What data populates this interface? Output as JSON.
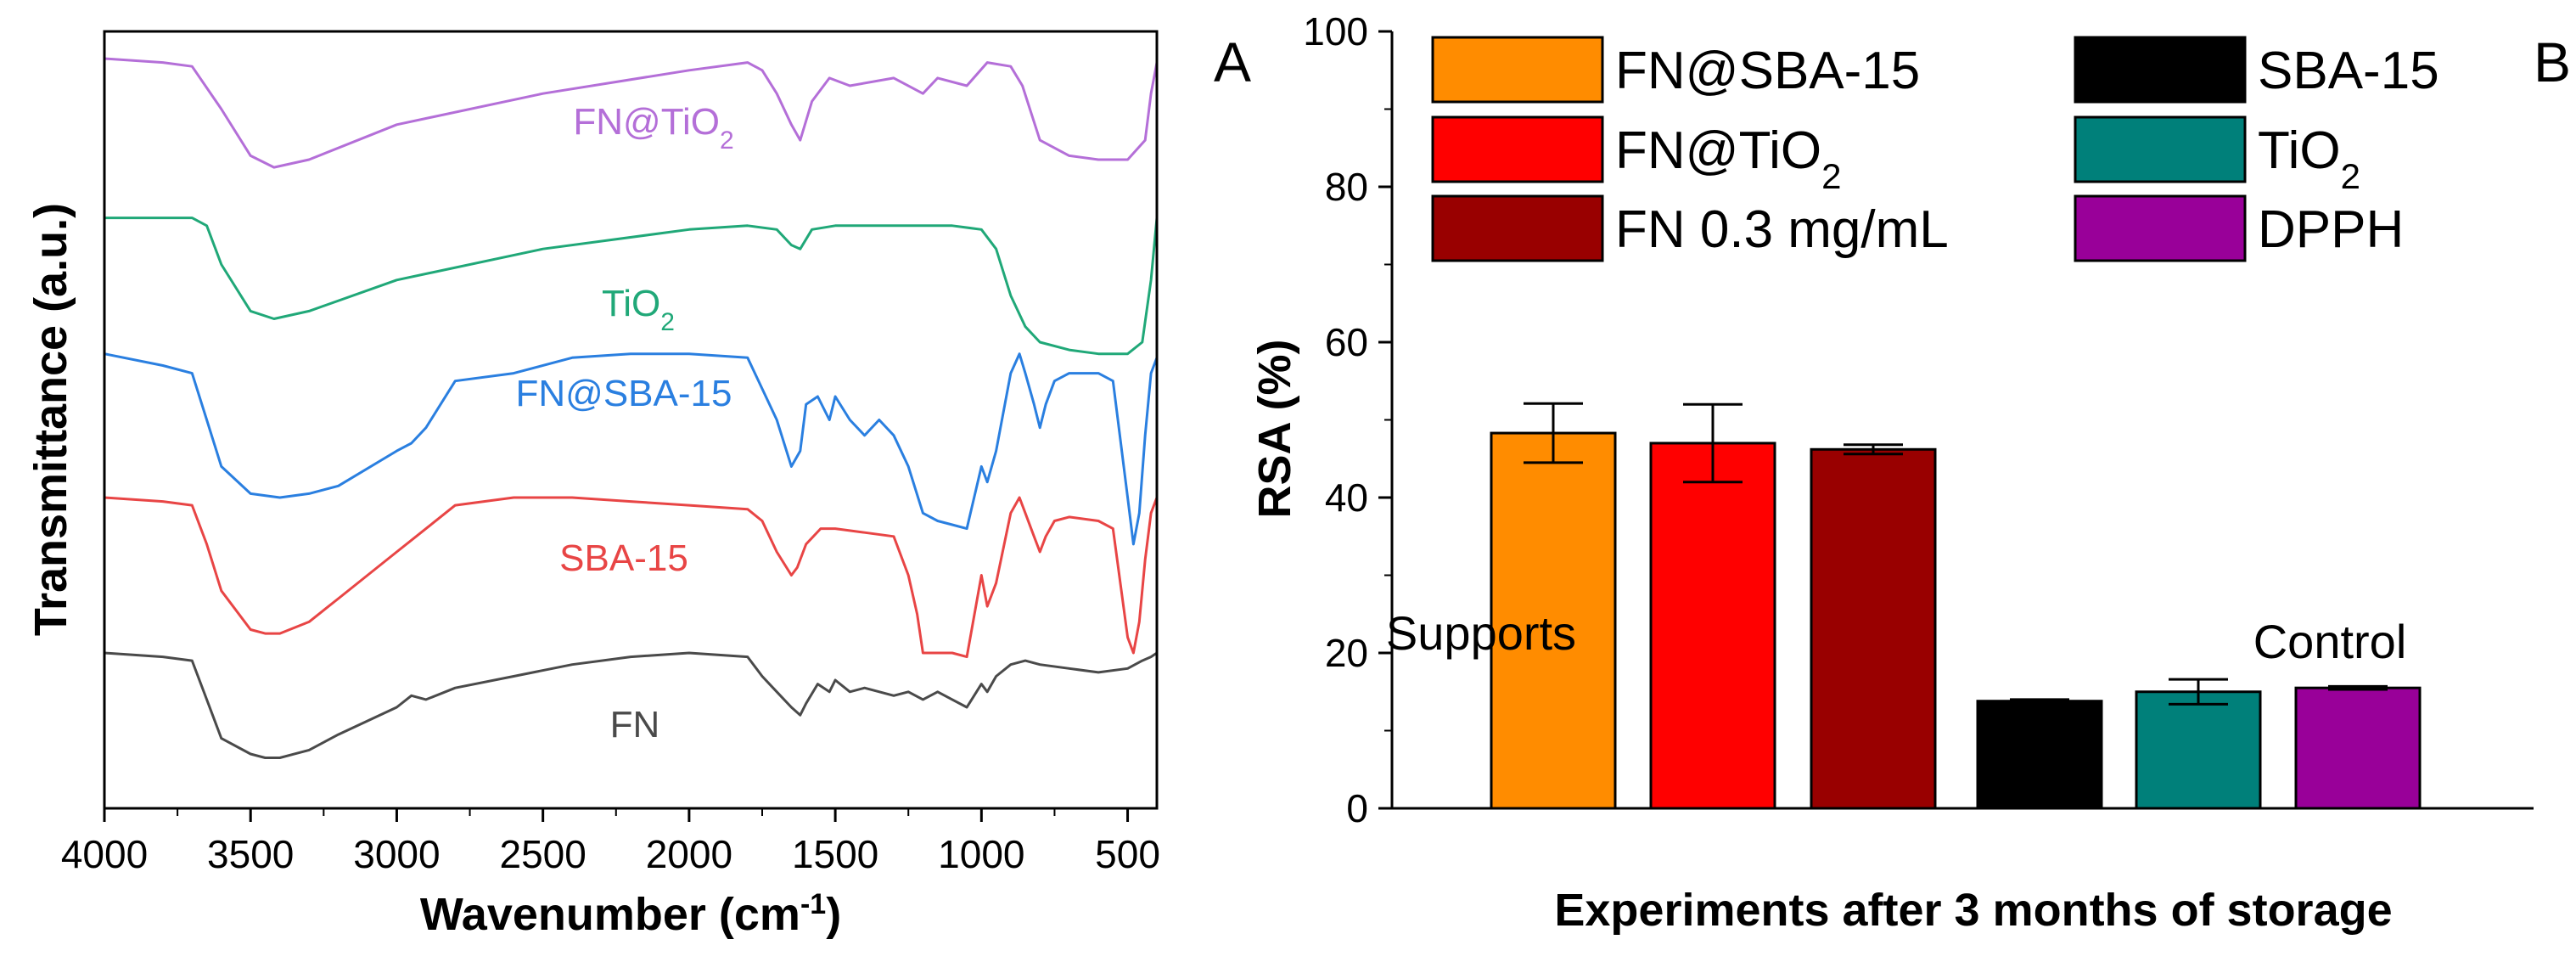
{
  "figure": {
    "panels": [
      "A",
      "B"
    ]
  },
  "chart_data": [
    {
      "type": "line",
      "panel": "A",
      "title": "",
      "xlabel": "Wavenumber (cm",
      "xlabel_sup": "-1",
      "xlabel_tail": ")",
      "ylabel": "Transmittance (a.u.)",
      "xlim": [
        4000,
        400
      ],
      "xticks": [
        "4000",
        "3500",
        "3000",
        "2500",
        "2000",
        "1500",
        "1000",
        "500"
      ],
      "ylim": [
        0,
        100
      ],
      "yticks_shown": false,
      "note": "FTIR spectra stacked with vertical offsets; y values are relative transmittance on an arbitrary 0-100 scale",
      "series": [
        {
          "name": "FN@TiO2",
          "label_main": "FN@TiO",
          "label_sub": "2",
          "color": "#b46fd8",
          "x": [
            4000,
            3800,
            3700,
            3600,
            3500,
            3420,
            3300,
            3000,
            2500,
            2000,
            1800,
            1750,
            1700,
            1650,
            1620,
            1580,
            1520,
            1450,
            1300,
            1200,
            1150,
            1050,
            980,
            900,
            860,
            800,
            700,
            600,
            500,
            440,
            420,
            400
          ],
          "y": [
            96.5,
            96,
            95.5,
            90,
            84,
            82.5,
            83.5,
            88,
            92,
            95,
            96,
            95,
            92,
            88,
            86,
            91,
            94,
            93,
            94,
            92,
            94,
            93,
            96,
            95.5,
            93,
            86,
            84,
            83.5,
            83.5,
            86,
            92,
            96
          ]
        },
        {
          "name": "TiO2",
          "label_main": "TiO",
          "label_sub": "2",
          "color": "#20a878",
          "x": [
            4000,
            3700,
            3650,
            3600,
            3500,
            3420,
            3300,
            3000,
            2500,
            2000,
            1800,
            1700,
            1650,
            1620,
            1580,
            1500,
            1300,
            1100,
            1000,
            950,
            900,
            850,
            800,
            700,
            600,
            500,
            450,
            420,
            400
          ],
          "y": [
            76,
            76,
            75,
            70,
            64,
            63,
            64,
            68,
            72,
            74.5,
            75,
            74.5,
            72.5,
            72,
            74.5,
            75,
            75,
            75,
            74.5,
            72,
            66,
            62,
            60,
            59,
            58.5,
            58.5,
            60,
            68,
            76
          ]
        },
        {
          "name": "FN@SBA-15",
          "label_main": "FN@SBA-15",
          "label_sub": "",
          "color": "#2a7fe0",
          "x": [
            4000,
            3800,
            3700,
            3650,
            3600,
            3500,
            3400,
            3300,
            3200,
            3000,
            2950,
            2900,
            2800,
            2600,
            2400,
            2200,
            2000,
            1800,
            1750,
            1700,
            1650,
            1620,
            1600,
            1560,
            1520,
            1500,
            1450,
            1400,
            1350,
            1300,
            1250,
            1200,
            1150,
            1100,
            1050,
            1000,
            980,
            950,
            900,
            870,
            850,
            820,
            800,
            780,
            750,
            700,
            600,
            550,
            500,
            480,
            460,
            440,
            420,
            400
          ],
          "y": [
            58.5,
            57,
            56,
            50,
            44,
            40.5,
            40,
            40.5,
            41.5,
            46,
            47,
            49,
            55,
            56,
            58,
            58.5,
            58.5,
            58,
            54,
            50,
            44,
            46,
            52,
            53,
            50,
            53,
            50,
            48,
            50,
            48,
            44,
            38,
            37,
            36.5,
            36,
            44,
            42,
            46,
            56,
            58.5,
            56,
            52,
            49,
            52,
            55,
            56,
            56,
            55,
            40,
            34,
            38,
            48,
            56,
            58
          ]
        },
        {
          "name": "SBA-15",
          "label_main": "SBA-15",
          "label_sub": "",
          "color": "#e84545",
          "x": [
            4000,
            3800,
            3700,
            3650,
            3600,
            3500,
            3450,
            3400,
            3300,
            3200,
            3000,
            2900,
            2800,
            2600,
            2400,
            2200,
            2000,
            1800,
            1750,
            1700,
            1650,
            1630,
            1600,
            1550,
            1500,
            1400,
            1300,
            1250,
            1220,
            1200,
            1150,
            1100,
            1050,
            1000,
            980,
            950,
            900,
            870,
            850,
            820,
            800,
            780,
            750,
            700,
            600,
            550,
            500,
            480,
            460,
            440,
            420,
            400
          ],
          "y": [
            40,
            39.5,
            39,
            34,
            28,
            23,
            22.5,
            22.5,
            24,
            27,
            33,
            36,
            39,
            40,
            40,
            39.5,
            39,
            38.5,
            37,
            33,
            30,
            31,
            34,
            36,
            36,
            35.5,
            35,
            30,
            25,
            20,
            20,
            20,
            19.5,
            30,
            26,
            29,
            38,
            40,
            38,
            35,
            33,
            35,
            37,
            37.5,
            37,
            36,
            22,
            20,
            24,
            32,
            38,
            40
          ]
        },
        {
          "name": "FN",
          "label_main": "FN",
          "label_sub": "",
          "color": "#4a4a4a",
          "x": [
            4000,
            3800,
            3700,
            3650,
            3600,
            3500,
            3450,
            3400,
            3300,
            3200,
            3000,
            2950,
            2900,
            2800,
            2600,
            2400,
            2200,
            2000,
            1800,
            1750,
            1700,
            1650,
            1620,
            1600,
            1560,
            1520,
            1500,
            1450,
            1400,
            1300,
            1250,
            1200,
            1150,
            1100,
            1050,
            1000,
            980,
            950,
            900,
            850,
            800,
            700,
            600,
            500,
            450,
            420,
            400
          ],
          "y": [
            20,
            19.5,
            19,
            14,
            9,
            7,
            6.5,
            6.5,
            7.5,
            9.5,
            13,
            14.5,
            14,
            15.5,
            17,
            18.5,
            19.5,
            20,
            19.5,
            17,
            15,
            13,
            12,
            13.5,
            16,
            15,
            16.5,
            15,
            15.5,
            14.5,
            15,
            14,
            15,
            14,
            13,
            16,
            15,
            17,
            18.5,
            19,
            18.5,
            18,
            17.5,
            18,
            19,
            19.5,
            20
          ]
        }
      ]
    },
    {
      "type": "bar",
      "panel": "B",
      "title": "",
      "xlabel": "Experiments after 3 months of storage",
      "ylabel": "RSA (%)",
      "ylim": [
        0,
        100
      ],
      "yticks": [
        0,
        20,
        40,
        60,
        80,
        100
      ],
      "categories": [
        "FN@SBA-15",
        "FN@TiO2",
        "FN 0.3 mg/mL",
        "SBA-15",
        "TiO2",
        "DPPH"
      ],
      "values": [
        48.3,
        47.0,
        46.2,
        13.8,
        15.0,
        15.5
      ],
      "errors": [
        3.8,
        5.0,
        0.6,
        0.2,
        1.6,
        0.2
      ],
      "colors": [
        "#ff8c00",
        "#ff0000",
        "#990000",
        "#000000",
        "#00807a",
        "#990099"
      ],
      "group_labels": [
        "Supports",
        "Control"
      ],
      "legend": [
        {
          "main": "FN@SBA-15",
          "sub": "",
          "color": "#ff8c00"
        },
        {
          "main": "FN@TiO",
          "sub": "2",
          "color": "#ff0000"
        },
        {
          "main": "FN 0.3 mg/mL",
          "sub": "",
          "color": "#990000"
        },
        {
          "main": "SBA-15",
          "sub": "",
          "color": "#000000"
        },
        {
          "main": "TiO",
          "sub": "2",
          "color": "#00807a"
        },
        {
          "main": "DPPH",
          "sub": "",
          "color": "#990099"
        }
      ]
    }
  ]
}
